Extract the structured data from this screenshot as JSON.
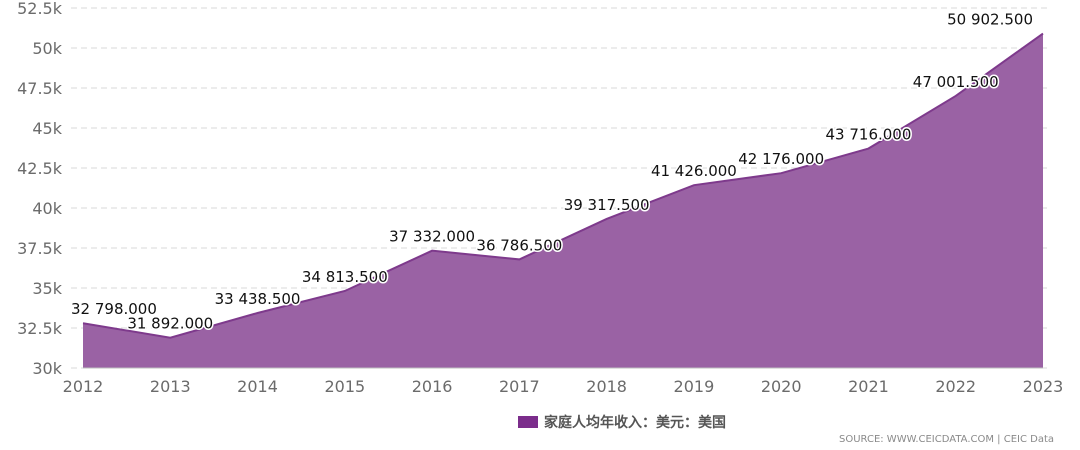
{
  "chart_data": {
    "type": "area",
    "title": "",
    "xlabel": "",
    "ylabel": "",
    "x": [
      "2012",
      "2013",
      "2014",
      "2015",
      "2016",
      "2017",
      "2018",
      "2019",
      "2020",
      "2021",
      "2022",
      "2023"
    ],
    "series": [
      {
        "name": "家庭人均年收入：美元：美国",
        "values": [
          32798.0,
          31892.0,
          33438.5,
          34813.5,
          37332.0,
          36786.5,
          39317.5,
          41426.0,
          42176.0,
          43716.0,
          47001.5,
          50902.5
        ],
        "labels": [
          "32 798.000",
          "31 892.000",
          "33 438.500",
          "34 813.500",
          "37 332.000",
          "36 786.500",
          "39 317.500",
          "41 426.000",
          "42 176.000",
          "43 716.000",
          "47 001.500",
          "50 902.500"
        ]
      }
    ],
    "ylim": [
      30000,
      52500
    ],
    "yticks": [
      30000,
      32500,
      35000,
      37500,
      40000,
      42500,
      45000,
      47500,
      50000,
      52500
    ],
    "ytick_labels": [
      "30k",
      "32.5k",
      "35k",
      "37.5k",
      "40k",
      "42.5k",
      "45k",
      "47.5k",
      "50k",
      "52.5k"
    ],
    "grid": true,
    "legend_position": "bottom-center",
    "colors": {
      "fill": "#9a62a4",
      "line": "#7e3a8c",
      "legend": "#7b2d8b",
      "grid": "#d9d9d9",
      "axis_text": "#6b6b6b"
    }
  },
  "legend": {
    "label": "家庭人均年收入：美元：美国"
  },
  "source": "SOURCE: WWW.CEICDATA.COM | CEIC Data"
}
